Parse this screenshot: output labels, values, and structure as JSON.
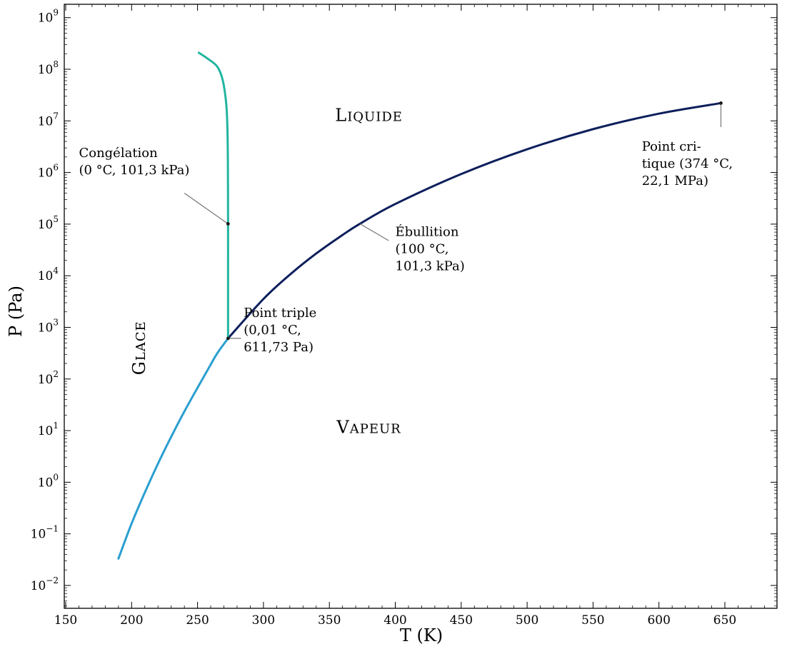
{
  "chart_data": {
    "type": "line",
    "title": "",
    "xlabel": "T (K)",
    "ylabel": "P (Pa)",
    "xlim": [
      150,
      690
    ],
    "ylim_log10": [
      -2.5,
      9.3
    ],
    "y_scale": "log",
    "grid": false,
    "x_ticks": [
      150,
      200,
      250,
      300,
      350,
      400,
      450,
      500,
      550,
      600,
      650
    ],
    "y_ticks": [
      {
        "exp": -2,
        "base": "10",
        "sup": "−2"
      },
      {
        "exp": -1,
        "base": "10",
        "sup": "−1"
      },
      {
        "exp": 0,
        "base": "10",
        "sup": "0"
      },
      {
        "exp": 1,
        "base": "10",
        "sup": "1"
      },
      {
        "exp": 2,
        "base": "10",
        "sup": "2"
      },
      {
        "exp": 3,
        "base": "10",
        "sup": "3"
      },
      {
        "exp": 4,
        "base": "10",
        "sup": "4"
      },
      {
        "exp": 5,
        "base": "10",
        "sup": "5"
      },
      {
        "exp": 6,
        "base": "10",
        "sup": "6"
      },
      {
        "exp": 7,
        "base": "10",
        "sup": "7"
      },
      {
        "exp": 8,
        "base": "10",
        "sup": "8"
      },
      {
        "exp": 9,
        "base": "10",
        "sup": "9"
      }
    ],
    "series": [
      {
        "color": "#2a9fd0",
        "points": [
          [
            190,
            -1.48
          ],
          [
            200,
            -0.8
          ],
          [
            210,
            -0.2
          ],
          [
            220,
            0.36
          ],
          [
            230,
            0.88
          ],
          [
            240,
            1.37
          ],
          [
            250,
            1.83
          ],
          [
            260,
            2.28
          ],
          [
            265,
            2.5
          ],
          [
            273.16,
            2.787
          ]
        ]
      },
      {
        "color": "#0d1f5c",
        "points": [
          [
            273.16,
            2.787
          ],
          [
            300,
            3.55
          ],
          [
            320,
            4.02
          ],
          [
            340,
            4.43
          ],
          [
            360,
            4.79
          ],
          [
            373.15,
            5.006
          ],
          [
            400,
            5.39
          ],
          [
            450,
            5.97
          ],
          [
            500,
            6.45
          ],
          [
            550,
            6.84
          ],
          [
            600,
            7.14
          ],
          [
            647,
            7.344
          ]
        ]
      },
      {
        "color": "#22b5a0",
        "points": [
          [
            273.16,
            2.787
          ],
          [
            273.16,
            4.0
          ],
          [
            273.15,
            5.006
          ],
          [
            273.0,
            6.3
          ],
          [
            272.5,
            7.0
          ],
          [
            271.5,
            7.4
          ],
          [
            269,
            7.8
          ],
          [
            265,
            8.05
          ],
          [
            258,
            8.2
          ],
          [
            251,
            8.32
          ]
        ]
      }
    ],
    "markers": [
      {
        "x": 273.15,
        "y_log10": 5.006
      },
      {
        "x": 647,
        "y_log10": 7.344
      },
      {
        "x": 273.16,
        "y_log10": 2.787
      }
    ],
    "regions": [
      {
        "text": "Liquide",
        "x": 380,
        "y_log10": 7.0,
        "rotate": false
      },
      {
        "text": "Vapeur",
        "x": 380,
        "y_log10": 0.95,
        "rotate": false
      },
      {
        "text": "Glace",
        "x": 210,
        "y_log10": 2.6,
        "rotate": true
      }
    ],
    "annotations": [
      {
        "lines": [
          "Congélation",
          "(0 °C, 101,3 kPa)"
        ],
        "x": 160,
        "y_log10": 6.3,
        "point": [
          273.15,
          5.006
        ],
        "line_from": [
          240,
          5.6
        ]
      },
      {
        "lines": [
          "Point triple",
          "(0,01 °C,",
          "611,73 Pa)"
        ],
        "x": 285,
        "y_log10": 3.2,
        "point": [
          273.16,
          2.787
        ],
        "line_from": [
          283,
          2.787
        ]
      },
      {
        "lines": [
          "Ébullition",
          "(100 °C,",
          "101,3 kPa)"
        ],
        "x": 400,
        "y_log10": 4.77,
        "point": [
          373.15,
          5.006
        ],
        "line_from": [
          395,
          4.68
        ]
      },
      {
        "lines": [
          "Point cri-",
          "tique (374 °C,",
          "22,1 MPa)"
        ],
        "x": 587,
        "y_log10": 6.42,
        "point": [
          647,
          7.344
        ],
        "line_from": [
          647,
          6.88
        ]
      }
    ]
  }
}
